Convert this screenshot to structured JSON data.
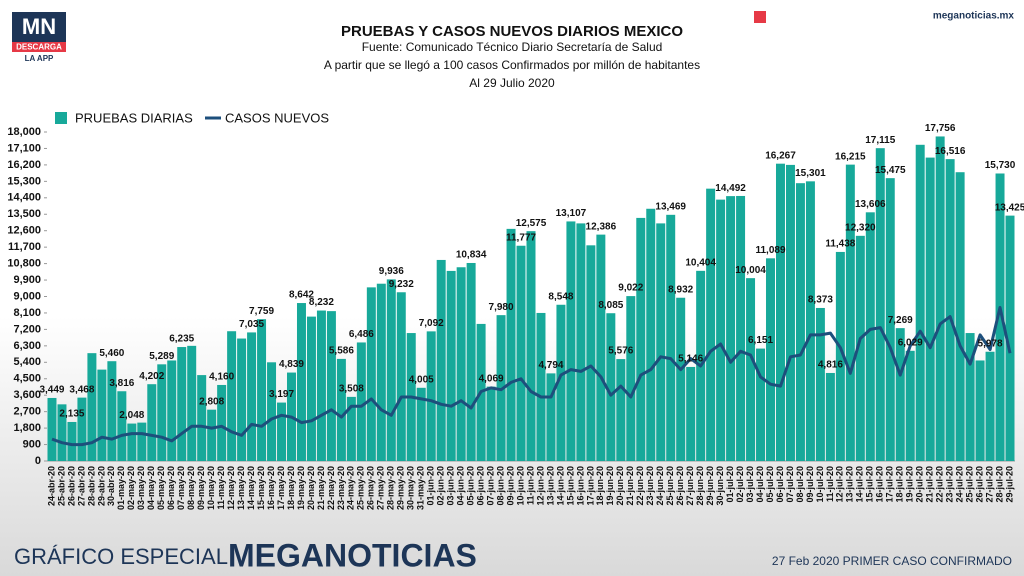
{
  "logo": {
    "text": "MN",
    "button": "DESCARGA",
    "caption": "LA APP"
  },
  "site": "meganoticias.mx",
  "footer": {
    "left": "GRÁFICO ESPECIAL",
    "brand": "MEGANOTICIAS",
    "right": "27 Feb 2020 PRIMER CASO CONFIRMADO"
  },
  "chart_data": {
    "type": "bar",
    "title": "PRUEBAS Y CASOS NUEVOS DIARIOS MEXICO",
    "subtitles": [
      "Fuente: Comunicado Técnico Diario Secretaría de Salud",
      "A partir que se llegó a 100 casos Confirmados por millón de habitantes",
      "Al 29 Julio 2020"
    ],
    "categories": [
      "24-abr-20",
      "25-abr-20",
      "26-abr-20",
      "27-abr-20",
      "28-abr-20",
      "29-abr-20",
      "30-abr-20",
      "01-may-20",
      "02-may-20",
      "03-may-20",
      "04-may-20",
      "05-may-20",
      "06-may-20",
      "07-may-20",
      "08-may-20",
      "09-may-20",
      "10-may-20",
      "11-may-20",
      "12-may-20",
      "13-may-20",
      "14-may-20",
      "15-may-20",
      "16-may-20",
      "17-may-20",
      "18-may-20",
      "19-may-20",
      "20-may-20",
      "21-may-20",
      "22-may-20",
      "23-may-20",
      "24-may-20",
      "25-may-20",
      "26-may-20",
      "27-may-20",
      "28-may-20",
      "29-may-20",
      "30-may-20",
      "31-may-20",
      "01-jun-20",
      "02-jun-20",
      "03-jun-20",
      "04-jun-20",
      "05-jun-20",
      "06-jun-20",
      "07-jun-20",
      "08-jun-20",
      "09-jun-20",
      "10-jun-20",
      "11-jun-20",
      "12-jun-20",
      "13-jun-20",
      "14-jun-20",
      "15-jun-20",
      "16-jun-20",
      "17-jun-20",
      "18-jun-20",
      "19-jun-20",
      "20-jun-20",
      "21-jun-20",
      "22-jun-20",
      "23-jun-20",
      "24-jun-20",
      "25-jun-20",
      "26-jun-20",
      "27-jun-20",
      "28-jun-20",
      "29-jun-20",
      "30-jun-20",
      "01-jul-20",
      "02-jul-20",
      "03-jul-20",
      "04-jul-20",
      "05-jul-20",
      "06-jul-20",
      "07-jul-20",
      "08-jul-20",
      "09-jul-20",
      "10-jul-20",
      "11-jul-20",
      "12-jul-20",
      "13-jul-20",
      "14-jul-20",
      "15-jul-20",
      "16-jul-20",
      "17-jul-20",
      "18-jul-20",
      "19-jul-20",
      "20-jul-20",
      "21-jul-20",
      "22-jul-20",
      "23-jul-20",
      "24-jul-20",
      "25-jul-20",
      "26-jul-20",
      "27-jul-20",
      "28-jul-20",
      "29-jul-20"
    ],
    "series": [
      {
        "name": "PRUEBAS DIARIAS",
        "type": "bar",
        "color": "#17a99a",
        "values": [
          3449,
          3100,
          2135,
          3468,
          5900,
          5000,
          5460,
          3816,
          2048,
          2100,
          4202,
          5289,
          5500,
          6235,
          6300,
          4700,
          2808,
          4160,
          7100,
          6700,
          7035,
          7759,
          5400,
          3197,
          4839,
          8642,
          7900,
          8232,
          8200,
          5586,
          3508,
          6486,
          9500,
          9700,
          9936,
          9232,
          7000,
          4005,
          7092,
          11000,
          10400,
          10600,
          10834,
          7500,
          4069,
          7980,
          12700,
          11777,
          12575,
          8100,
          4794,
          8548,
          13107,
          13000,
          11800,
          12386,
          8085,
          5576,
          9022,
          13300,
          13800,
          13000,
          13469,
          8932,
          5146,
          10404,
          14900,
          14300,
          14492,
          14500,
          10004,
          6151,
          11089,
          16267,
          16200,
          15200,
          15301,
          8373,
          4816,
          11438,
          16215,
          12320,
          13606,
          17115,
          15475,
          7269,
          6029,
          17300,
          16600,
          17756,
          16516,
          15800,
          7000,
          5500,
          5978,
          15730,
          13425
        ],
        "value_labels": [
          "3,449",
          null,
          "2,135",
          "3,468",
          null,
          null,
          "5,460",
          "3,816",
          "2,048",
          null,
          "4,202",
          "5,289",
          null,
          "6,235",
          null,
          null,
          "2,808",
          "4,160",
          null,
          null,
          "7,035",
          "7,759",
          null,
          "3,197",
          "4,839",
          "8,642",
          null,
          "8,232",
          null,
          "5,586",
          "3,508",
          "6,486",
          null,
          null,
          "9,936",
          "9,232",
          null,
          "4,005",
          "7,092",
          null,
          null,
          null,
          "10,834",
          null,
          "4,069",
          "7,980",
          null,
          "11,777",
          "12,575",
          null,
          "4,794",
          "8,548",
          "13,107",
          null,
          null,
          "12,386",
          "8,085",
          "5,576",
          "9,022",
          null,
          null,
          null,
          "13,469",
          "8,932",
          "5,146",
          "10,404",
          null,
          null,
          "14,492",
          null,
          "10,004",
          "6,151",
          "11,089",
          "16,267",
          null,
          null,
          "15,301",
          "8,373",
          "4,816",
          "11,438",
          "16,215",
          "12,320",
          "13,606",
          "17,115",
          "15,475",
          "7,269",
          "6,029",
          null,
          null,
          "17,756",
          "16,516",
          null,
          null,
          null,
          "5,978",
          "15,730",
          "13,425"
        ]
      },
      {
        "name": "CASOS NUEVOS",
        "type": "line",
        "color": "#1d4f7c",
        "values": [
          1200,
          1000,
          900,
          900,
          1000,
          1300,
          1200,
          1400,
          1500,
          1500,
          1400,
          1300,
          1100,
          1500,
          1900,
          1900,
          1800,
          1900,
          1600,
          1400,
          2000,
          1900,
          2300,
          2500,
          2400,
          2100,
          2200,
          2500,
          2800,
          2400,
          3000,
          3000,
          3400,
          2800,
          2500,
          3500,
          3500,
          3400,
          3300,
          3100,
          3000,
          3300,
          2900,
          3800,
          4000,
          3900,
          4300,
          4500,
          3800,
          3500,
          3500,
          4700,
          5000,
          4900,
          5200,
          4600,
          3600,
          4100,
          3500,
          4700,
          5000,
          5700,
          5600,
          5000,
          5600,
          5200,
          6000,
          6400,
          5400,
          6000,
          5800,
          4600,
          4200,
          4100,
          5700,
          5800,
          6900,
          6900,
          7000,
          6200,
          4800,
          6700,
          7200,
          7300,
          6200,
          4700,
          6300,
          7100,
          6200,
          7500,
          7900,
          6300,
          5300,
          6900,
          6100,
          8400,
          5900
        ]
      }
    ],
    "ylim": [
      0,
      18000
    ],
    "yticks": [
      0,
      900,
      {
        "value": 1800,
        "label": "1,800"
      },
      {
        "value": 2700,
        "label": "2,700"
      },
      {
        "value": 3600,
        "label": "3,600"
      },
      {
        "value": 4500,
        "label": "4,500"
      },
      {
        "value": 5400,
        "label": "5,400"
      },
      {
        "value": 6300,
        "label": "6,300"
      },
      {
        "value": 7200,
        "label": "7,200"
      },
      {
        "value": 8100,
        "label": "8,100"
      },
      {
        "value": 9000,
        "label": "9,000"
      },
      {
        "value": 9900,
        "label": "9,900"
      },
      {
        "value": 10800,
        "label": "10,800"
      },
      {
        "value": 11700,
        "label": "11,700"
      },
      {
        "value": 12600,
        "label": "12,600"
      },
      {
        "value": 13500,
        "label": "13,500"
      },
      {
        "value": 14400,
        "label": "14,400"
      },
      {
        "value": 15300,
        "label": "15,300"
      },
      {
        "value": 16200,
        "label": "16,200"
      },
      {
        "value": 17100,
        "label": "17,100"
      },
      {
        "value": 18000,
        "label": "18,000"
      }
    ],
    "legend": "top-left"
  }
}
